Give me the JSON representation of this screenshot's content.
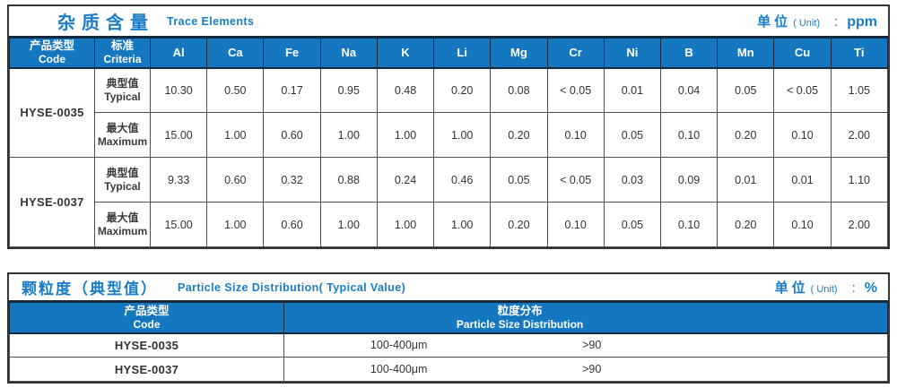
{
  "colors": {
    "header_blue": "#1577c0",
    "accent_blue": "#1a7cc8",
    "divider_navy": "#15293c"
  },
  "table1": {
    "title_cn": "杂质含量",
    "title_en": "Trace Elements",
    "unit": {
      "cn": "单位",
      "en": "( Unit)",
      "colon": ":",
      "value": "ppm"
    },
    "header": {
      "code_cn": "产品类型",
      "code_en": "Code",
      "criteria_cn": "标准",
      "criteria_en": "Criteria",
      "elements": [
        "Al",
        "Ca",
        "Fe",
        "Na",
        "K",
        "Li",
        "Mg",
        "Cr",
        "Ni",
        "B",
        "Mn",
        "Cu",
        "Ti"
      ]
    },
    "groups": [
      {
        "code": "HYSE-0035",
        "rows": [
          {
            "label_cn": "典型值",
            "label_en": "Typical",
            "values": [
              "10.30",
              "0.50",
              "0.17",
              "0.95",
              "0.48",
              "0.20",
              "0.08",
              "< 0.05",
              "0.01",
              "0.04",
              "0.05",
              "< 0.05",
              "1.05"
            ]
          },
          {
            "label_cn": "最大值",
            "label_en": "Maximum",
            "values": [
              "15.00",
              "1.00",
              "0.60",
              "1.00",
              "1.00",
              "1.00",
              "0.20",
              "0.10",
              "0.05",
              "0.10",
              "0.20",
              "0.10",
              "2.00"
            ]
          }
        ]
      },
      {
        "code": "HYSE-0037",
        "rows": [
          {
            "label_cn": "典型值",
            "label_en": "Typical",
            "values": [
              "9.33",
              "0.60",
              "0.32",
              "0.88",
              "0.24",
              "0.46",
              "0.05",
              "< 0.05",
              "0.03",
              "0.09",
              "0.01",
              "0.01",
              "1.10"
            ]
          },
          {
            "label_cn": "最大值",
            "label_en": "Maximum",
            "values": [
              "15.00",
              "1.00",
              "0.60",
              "1.00",
              "1.00",
              "1.00",
              "0.20",
              "0.10",
              "0.05",
              "0.10",
              "0.20",
              "0.10",
              "2.00"
            ]
          }
        ]
      }
    ]
  },
  "table2": {
    "title_cn": "颗粒度（典型值）",
    "title_en": "Particle Size Distribution( Typical Value)",
    "unit": {
      "cn": "单位",
      "en": "( Unit)",
      "colon": ":",
      "value": "%"
    },
    "header": {
      "code_cn": "产品类型",
      "code_en": "Code",
      "dist_cn": "粒度分布",
      "dist_en": "Particle Size  Distribution"
    },
    "rows": [
      {
        "code": "HYSE-0035",
        "range": "100-400μm",
        "value": ">90"
      },
      {
        "code": "HYSE-0037",
        "range": "100-400μm",
        "value": ">90"
      }
    ]
  }
}
